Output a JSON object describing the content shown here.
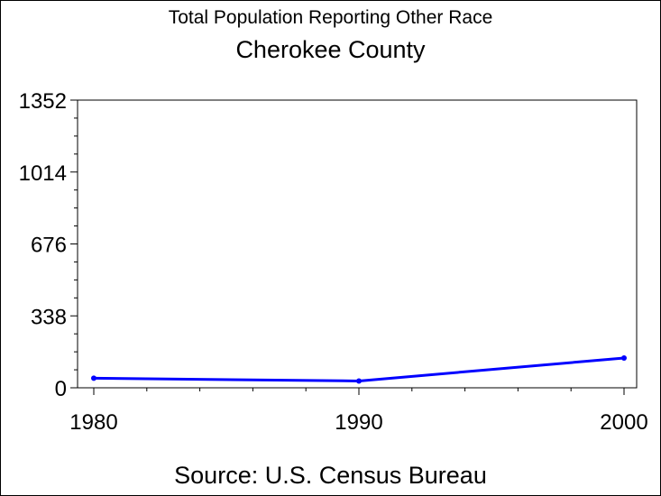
{
  "chart_data": {
    "type": "line",
    "title": "Total Population Reporting Other Race",
    "subtitle": "Cherokee County",
    "source": "Source: U.S. Census Bureau",
    "x": [
      1980,
      1990,
      2000
    ],
    "x_tick_labels": [
      "1980",
      "1990",
      "2000"
    ],
    "y_tick_values": [
      0,
      338,
      676,
      1014,
      1352
    ],
    "y_tick_labels": [
      "0",
      "338",
      "676",
      "1014",
      "1352"
    ],
    "xlim": [
      1980,
      2000
    ],
    "ylim": [
      0,
      1352
    ],
    "grid": false,
    "series": [
      {
        "values": [
          45,
          32,
          140
        ],
        "color": "#0000ff"
      }
    ]
  }
}
